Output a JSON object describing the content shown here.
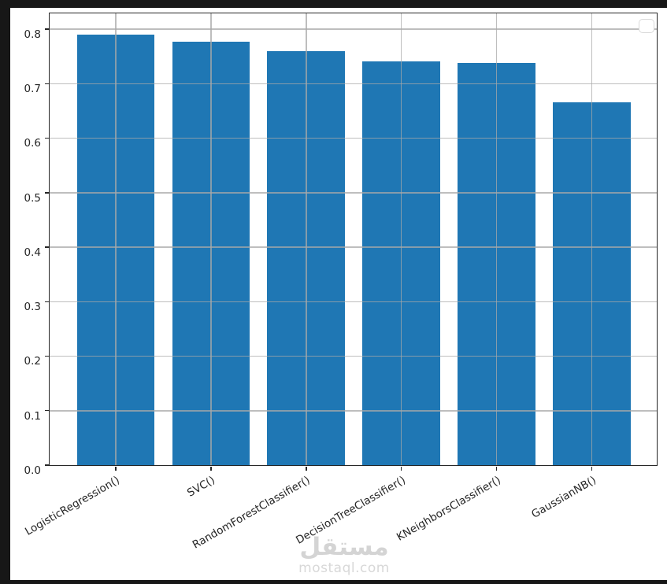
{
  "chart_data": {
    "type": "bar",
    "categories": [
      "LogisticRegression()",
      "SVC()",
      "RandomForestClassifier()",
      "DecisionTreeClassifier()",
      "KNeighborsClassifier()",
      "GaussianNB()"
    ],
    "values": [
      0.79,
      0.777,
      0.76,
      0.741,
      0.738,
      0.666
    ],
    "title": "",
    "xlabel": "",
    "ylabel": "",
    "ylim": [
      0,
      0.829
    ],
    "yticks": [
      0.0,
      0.1,
      0.2,
      0.3,
      0.4,
      0.5,
      0.6,
      0.7,
      0.8
    ],
    "ytick_labels": [
      "0.0",
      "0.1",
      "0.2",
      "0.3",
      "0.4",
      "0.5",
      "0.6",
      "0.7",
      "0.8"
    ],
    "grid": true,
    "grid_above_bars": true,
    "x_label_rotation_deg": -30,
    "legend": "empty-rounded-box-top-right",
    "bar_color": "#1f77b4"
  },
  "watermark": {
    "line1": "مستقل",
    "line2": "mostaql.com"
  },
  "colors": {
    "frame_background": "#171717",
    "figure_background": "#ffffff",
    "bar": "#1f77b4",
    "grid": "#a8a8a8",
    "spine": "#262626",
    "tick_label": "#262626",
    "legend_border": "#d9d9d9",
    "watermark": "#d4d4d4"
  }
}
